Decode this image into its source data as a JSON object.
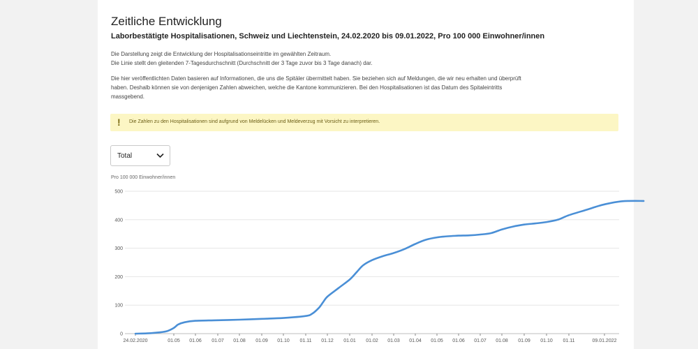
{
  "header": {
    "title": "Zeitliche Entwicklung",
    "subtitle": "Laborbestätigte Hospitalisationen, Schweiz und Liechtenstein, 24.02.2020 bis 09.01.2022, Pro 100 000 Einwohner/innen"
  },
  "description": {
    "line1": "Die Darstellung zeigt die Entwicklung der Hospitalisationseintritte im gewählten Zeitraum.",
    "line2": "Die Linie stellt den gleitenden 7-Tagesdurchschnitt (Durchschnitt der 3 Tage zuvor bis 3 Tage danach) dar.",
    "para2_line1": "Die hier veröffentlichten Daten basieren auf Informationen, die uns die Spitäler übermittelt haben. Sie beziehen sich auf Meldungen, die wir neu erhalten und überprüft",
    "para2_line2": "haben. Deshalb können sie von denjenigen Zahlen abweichen, welche die Kantone kommunizieren. Bei den Hospitalisationen ist das Datum des Spitaleintritts",
    "para2_line3": "massgebend."
  },
  "notice": {
    "icon": "!",
    "text": "Die Zahlen zu den Hospitalisationen sind aufgrund von Meldelücken und Meldeverzug mit Vorsicht zu interpretieren."
  },
  "filter": {
    "selected": "Total"
  },
  "colors": {
    "line": "#4a8fd6",
    "notice_bg": "#fcf6c4",
    "grid": "#e6e6e6"
  },
  "chart_data": {
    "type": "line",
    "ylabel": "Pro 100 000 Einwohner/innen",
    "ylim": [
      0,
      500
    ],
    "yticks": [
      "0",
      "100",
      "200",
      "300",
      "400",
      "500"
    ],
    "xticks": [
      "24.02.2020",
      "01.05",
      "01.06",
      "01.07",
      "01.08",
      "01.09",
      "01.10",
      "01.11",
      "01.12",
      "01.01",
      "01.02",
      "01.03",
      "01.04",
      "01.05",
      "01.06",
      "01.07",
      "01.08",
      "01.09",
      "01.10",
      "01.11",
      "09.01.2022"
    ],
    "grid": "horizontal",
    "series": [
      {
        "x": [
          0,
          0.3,
          0.5,
          0.8,
          1.0,
          1.2,
          1.5,
          2,
          3,
          4,
          5,
          6,
          7,
          7.3,
          7.6,
          7.8,
          8,
          8.5,
          9,
          9.3,
          9.6,
          10,
          10.5,
          11,
          11.5,
          12,
          12.5,
          13,
          13.5,
          14,
          14.5,
          15,
          15.5,
          16,
          16.5,
          17,
          17.5,
          18,
          18.5,
          19,
          19.5,
          19.75,
          20,
          20.5,
          21.1
        ],
        "y": [
          0,
          1,
          3,
          8,
          20,
          32,
          40,
          45,
          47,
          49,
          52,
          55,
          62,
          70,
          90,
          110,
          130,
          160,
          190,
          215,
          240,
          258,
          272,
          283,
          297,
          315,
          330,
          338,
          342,
          344,
          345,
          348,
          353,
          366,
          376,
          383,
          387,
          392,
          400,
          416,
          435,
          445,
          454,
          465,
          466
        ]
      }
    ]
  }
}
